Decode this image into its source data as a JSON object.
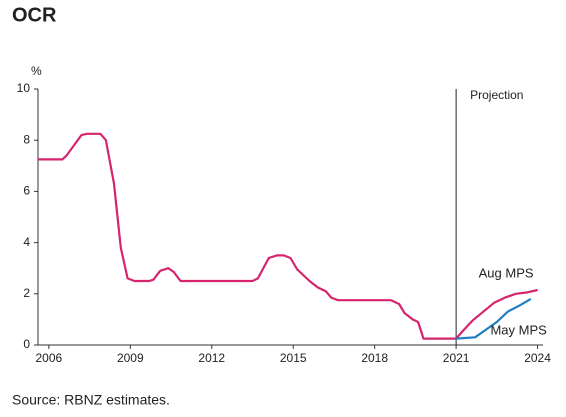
{
  "chart_data": {
    "type": "line",
    "title": "OCR",
    "ylabel": "%",
    "xlim": [
      2005.6,
      2024.2
    ],
    "xticks": [
      2006,
      2009,
      2012,
      2015,
      2018,
      2021,
      2024
    ],
    "ylim": [
      0,
      10
    ],
    "yticks": [
      0,
      2,
      4,
      6,
      8,
      10
    ],
    "grid": false,
    "annotations": [
      {
        "text": "Projection",
        "x": 2021
      }
    ],
    "source": "Source: RBNZ estimates.",
    "series": [
      {
        "name": "Aug MPS",
        "color": "#d6246e",
        "x": [
          2005.6,
          2006.5,
          2006.65,
          2007.2,
          2007.4,
          2007.9,
          2008.1,
          2008.4,
          2008.65,
          2008.9,
          2009.15,
          2009.7,
          2009.85,
          2010.1,
          2010.4,
          2010.6,
          2010.85,
          2013.5,
          2013.7,
          2014.1,
          2014.4,
          2014.65,
          2014.9,
          2015.15,
          2015.6,
          2015.9,
          2016.2,
          2016.4,
          2016.65,
          2018.6,
          2018.9,
          2019.1,
          2019.4,
          2019.6,
          2019.8,
          2021.0,
          2021.25,
          2021.6,
          2022.0,
          2022.4,
          2022.8,
          2023.2,
          2023.6,
          2024.0
        ],
        "values": [
          7.25,
          7.25,
          7.4,
          8.2,
          8.25,
          8.25,
          8.0,
          6.3,
          3.8,
          2.6,
          2.5,
          2.5,
          2.55,
          2.9,
          3.0,
          2.85,
          2.5,
          2.5,
          2.6,
          3.4,
          3.5,
          3.5,
          3.4,
          2.95,
          2.5,
          2.25,
          2.1,
          1.85,
          1.75,
          1.75,
          1.6,
          1.25,
          1.0,
          0.9,
          0.25,
          0.25,
          0.55,
          0.95,
          1.3,
          1.65,
          1.85,
          2.0,
          2.05,
          2.15
        ]
      },
      {
        "name": "May MPS",
        "color": "#1f7ec1",
        "x": [
          2021.0,
          2021.7,
          2022.1,
          2022.5,
          2022.9,
          2023.35,
          2023.75
        ],
        "values": [
          0.25,
          0.3,
          0.6,
          0.9,
          1.3,
          1.55,
          1.8
        ]
      }
    ]
  }
}
